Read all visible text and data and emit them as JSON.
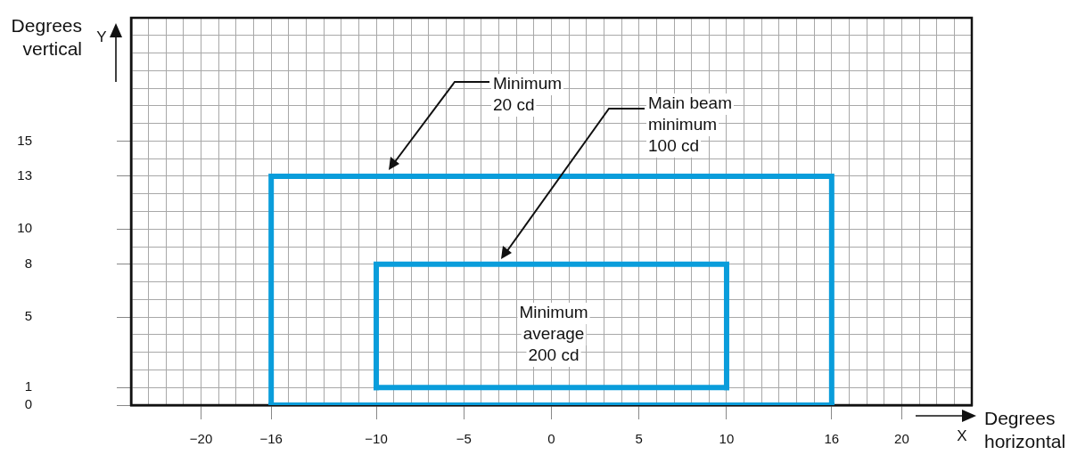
{
  "chart_data": {
    "type": "line",
    "xlabel": "Degrees horizontal",
    "ylabel": "Degrees vertical",
    "series": [
      {
        "color": "#0a9ddb",
        "x": [
          -16,
          -16,
          16,
          16
        ],
        "values": [
          0,
          13,
          13,
          0
        ]
      },
      {
        "color": "#0a9ddb",
        "x": [
          -16,
          16
        ],
        "values": [
          0,
          0
        ]
      },
      {
        "color": "#0a9ddb",
        "x": [
          -10,
          -10,
          10,
          10
        ],
        "values": [
          1,
          8,
          8,
          1
        ]
      },
      {
        "color": "#0a9ddb",
        "x": [
          -10,
          10
        ],
        "values": [
          1,
          1
        ]
      }
    ],
    "xlim": [
      -24,
      24
    ],
    "ylim": [
      0,
      22
    ],
    "xticks": [
      {
        "value": -24,
        "label": null
      },
      {
        "value": -23,
        "label": null
      },
      {
        "value": -22,
        "label": null
      },
      {
        "value": -21,
        "label": null
      },
      {
        "value": -20,
        "label": "−20"
      },
      {
        "value": -19,
        "label": null
      },
      {
        "value": -18,
        "label": null
      },
      {
        "value": -17,
        "label": null
      },
      {
        "value": -16,
        "label": "−16"
      },
      {
        "value": -15,
        "label": null
      },
      {
        "value": -14,
        "label": null
      },
      {
        "value": -13,
        "label": null
      },
      {
        "value": -12,
        "label": null
      },
      {
        "value": -11,
        "label": null
      },
      {
        "value": -10,
        "label": "−10"
      },
      {
        "value": -9,
        "label": null
      },
      {
        "value": -8,
        "label": null
      },
      {
        "value": -7,
        "label": null
      },
      {
        "value": -6,
        "label": null
      },
      {
        "value": -5,
        "label": "−5"
      },
      {
        "value": -4,
        "label": null
      },
      {
        "value": -3,
        "label": null
      },
      {
        "value": -2,
        "label": null
      },
      {
        "value": -1,
        "label": null
      },
      0,
      {
        "value": 1,
        "label": null
      },
      {
        "value": 2,
        "label": null
      },
      {
        "value": 3,
        "label": null
      },
      {
        "value": 4,
        "label": null
      },
      5,
      {
        "value": 6,
        "label": null
      },
      {
        "value": 7,
        "label": null
      },
      {
        "value": 8,
        "label": null
      },
      {
        "value": 9,
        "label": null
      },
      10,
      {
        "value": 11,
        "label": null
      },
      {
        "value": 12,
        "label": null
      },
      {
        "value": 13,
        "label": null
      },
      {
        "value": 14,
        "label": null
      },
      {
        "value": 15,
        "label": null
      },
      16,
      {
        "value": 17,
        "label": null
      },
      {
        "value": 18,
        "label": null
      },
      {
        "value": 19,
        "label": null
      },
      20,
      {
        "value": 21,
        "label": null
      },
      {
        "value": 22,
        "label": null
      },
      {
        "value": 23,
        "label": null
      },
      {
        "value": 24,
        "label": null
      }
    ],
    "yticks": [
      0,
      1,
      {
        "value": 2,
        "label": null
      },
      {
        "value": 3,
        "label": null
      },
      {
        "value": 4,
        "label": null
      },
      5,
      {
        "value": 6,
        "label": null
      },
      {
        "value": 7,
        "label": null
      },
      8,
      {
        "value": 9,
        "label": null
      },
      10,
      {
        "value": 11,
        "label": null
      },
      {
        "value": 12,
        "label": null
      },
      13,
      {
        "value": 14,
        "label": null
      },
      15,
      {
        "value": 16,
        "label": null
      },
      {
        "value": 17,
        "label": null
      },
      {
        "value": 18,
        "label": null
      },
      {
        "value": 19,
        "label": null
      },
      {
        "value": 20,
        "label": null
      },
      {
        "value": 21,
        "label": null
      },
      {
        "value": 22,
        "label": null
      }
    ],
    "grid": true,
    "legend": false,
    "marker": "none",
    "line_style": "solid",
    "annotations": [
      "Minimum\n20 cd",
      "Main beam\nminimum\n100 cd",
      "Minimum\naverage\n200 cd",
      "Y",
      "X"
    ]
  }
}
